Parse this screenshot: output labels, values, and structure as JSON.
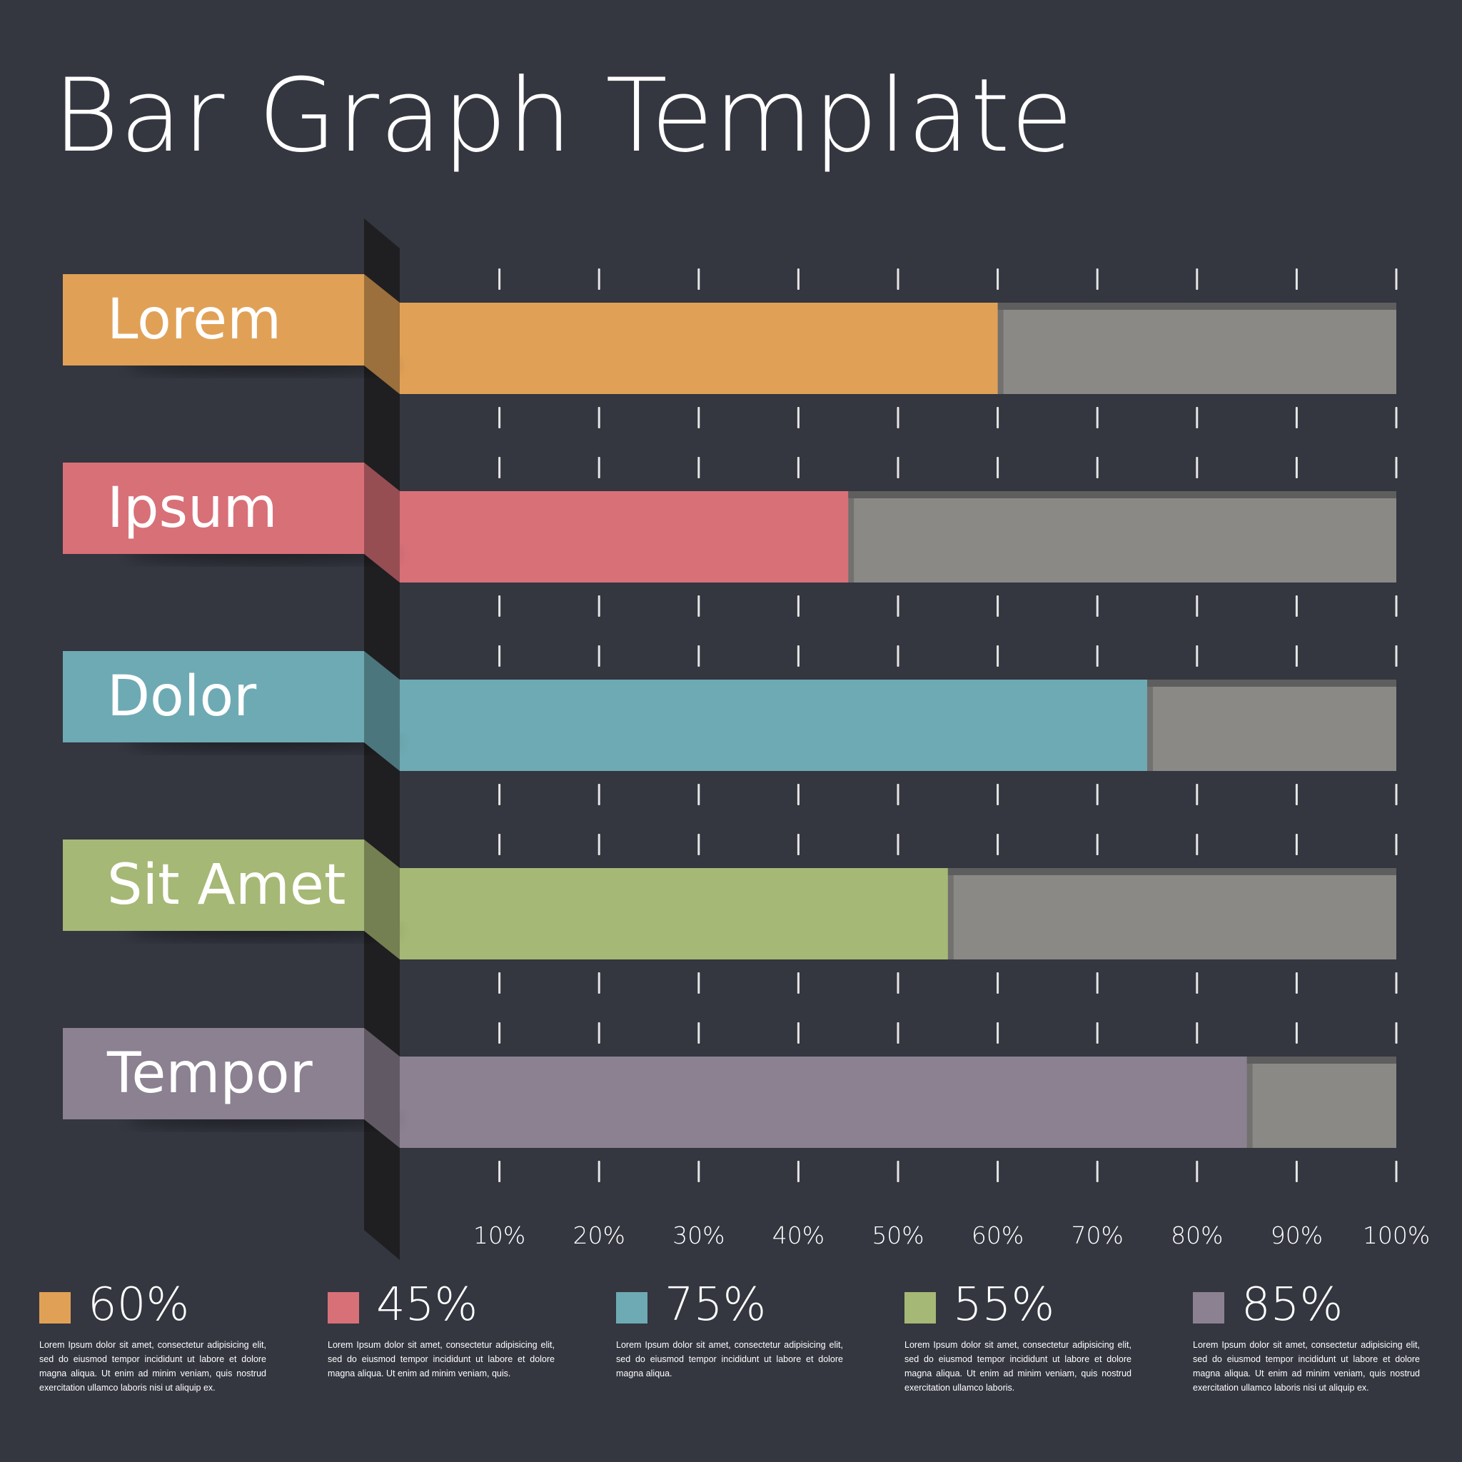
{
  "header": {
    "title": "Bar Graph Template"
  },
  "colors": {
    "background": "#343640",
    "track": "#8a8986",
    "tick": "#e6e6e6",
    "text": "#ffffff"
  },
  "chart_data": {
    "type": "bar",
    "orientation": "horizontal",
    "categories": [
      "Lorem",
      "Ipsum",
      "Dolor",
      "Sit Amet",
      "Tempor"
    ],
    "values": [
      60,
      45,
      75,
      55,
      85
    ],
    "colors": [
      "#e0a157",
      "#d87078",
      "#6eaab3",
      "#a6b875",
      "#8b8191"
    ],
    "xlim": [
      0,
      100
    ],
    "xticks": [
      10,
      20,
      30,
      40,
      50,
      60,
      70,
      80,
      90,
      100
    ],
    "xtick_labels": [
      "10%",
      "20%",
      "30%",
      "40%",
      "50%",
      "60%",
      "70%",
      "80%",
      "90%",
      "100%"
    ],
    "grid": false,
    "title": "Bar Graph Template"
  },
  "legend": [
    {
      "value": "60%",
      "color": "#e0a157",
      "text": "Lorem Ipsum dolor sit amet, consectetur adipisicing elit, sed do eiusmod tempor incididunt ut labore et dolore magna aliqua. Ut enim ad minim veniam, quis nostrud exercitation ullamco laboris nisi ut aliquip ex."
    },
    {
      "value": "45%",
      "color": "#d87078",
      "text": "Lorem Ipsum dolor sit amet, consectetur adipisicing elit, sed do eiusmod tempor incididunt ut labore et dolore magna aliqua. Ut enim ad minim veniam, quis."
    },
    {
      "value": "75%",
      "color": "#6eaab3",
      "text": "Lorem Ipsum dolor sit amet, consectetur adipisicing elit, sed do eiusmod tempor incididunt ut labore et dolore magna aliqua."
    },
    {
      "value": "55%",
      "color": "#a6b875",
      "text": "Lorem Ipsum dolor sit amet, consectetur adipisicing elit, sed do eiusmod tempor incididunt ut labore et dolore magna aliqua. Ut enim ad minim veniam, quis nostrud exercitation ullamco laboris."
    },
    {
      "value": "85%",
      "color": "#8b8191",
      "text": "Lorem Ipsum dolor sit amet, consectetur adipisicing elit, sed do eiusmod tempor incididunt ut labore et dolore magna aliqua. Ut enim ad minim veniam, quis nostrud exercitation ullamco laboris nisi ut aliquip ex."
    }
  ]
}
